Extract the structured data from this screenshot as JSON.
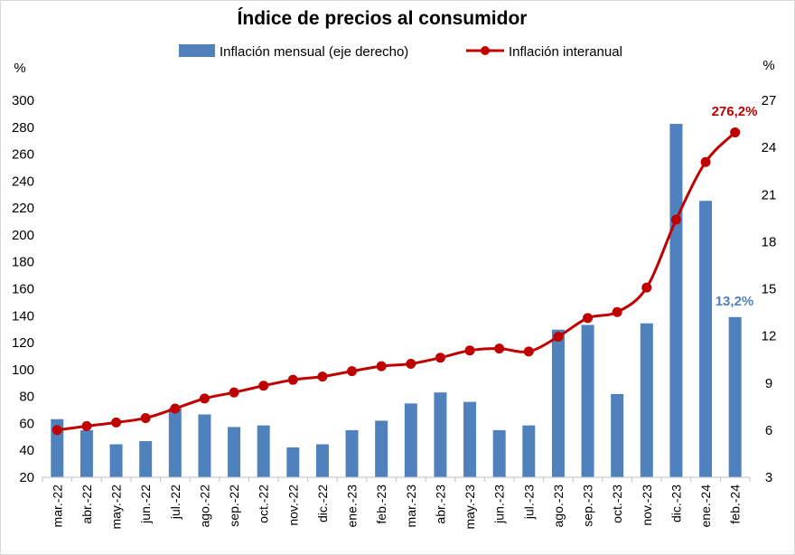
{
  "chart_data": {
    "type": "bar+line",
    "title": "Índice de precios al consumidor",
    "categories": [
      "mar.-22",
      "abr.-22",
      "may.-22",
      "jun.-22",
      "jul.-22",
      "ago.-22",
      "sep.-22",
      "oct.-22",
      "nov.-22",
      "dic.-22",
      "ene.-23",
      "feb.-23",
      "mar.-23",
      "abr.-23",
      "may.-23",
      "jun.-23",
      "jul.-23",
      "ago.-23",
      "sep.-23",
      "oct.-23",
      "nov.-23",
      "dic.-23",
      "ene.-24",
      "feb.-24"
    ],
    "series": [
      {
        "name": "Inflación mensual (eje derecho)",
        "type": "bar",
        "axis": "right",
        "color": "#4F81BD",
        "values": [
          6.7,
          6.0,
          5.1,
          5.3,
          7.4,
          7.0,
          6.2,
          6.3,
          4.9,
          5.1,
          6.0,
          6.6,
          7.7,
          8.4,
          7.8,
          6.0,
          6.3,
          12.4,
          12.7,
          8.3,
          12.8,
          25.5,
          20.6,
          13.2
        ]
      },
      {
        "name": "Inflación interanual",
        "type": "line",
        "axis": "left",
        "color": "#C00000",
        "values": [
          55.1,
          58.0,
          60.7,
          64.0,
          71.0,
          78.5,
          83.0,
          88.0,
          92.4,
          94.8,
          98.8,
          102.5,
          104.3,
          108.8,
          114.2,
          115.6,
          113.4,
          124.4,
          138.3,
          142.7,
          160.9,
          211.4,
          254.2,
          276.2
        ]
      }
    ],
    "left_axis": {
      "unit": "%",
      "min": 20,
      "max": 300,
      "ticks": [
        "20",
        "40",
        "60",
        "80",
        "100",
        "120",
        "140",
        "160",
        "180",
        "200",
        "220",
        "240",
        "260",
        "280",
        "300"
      ]
    },
    "right_axis": {
      "unit": "%",
      "min": 3,
      "max": 27,
      "ticks": [
        "3",
        "6",
        "9",
        "12",
        "15",
        "18",
        "21",
        "24",
        "27"
      ]
    },
    "data_labels": {
      "last_line": "276,2%",
      "last_bar": "13,2%"
    },
    "legend_position": "top",
    "grid": false
  }
}
